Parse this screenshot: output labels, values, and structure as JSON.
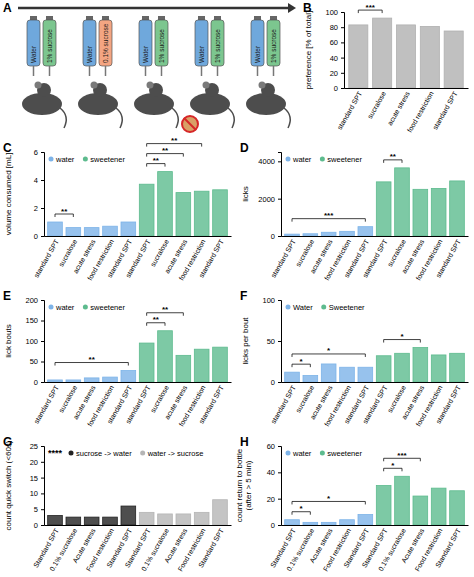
{
  "panel_a": {
    "panel": "A",
    "cages": [
      {
        "bottles": [
          {
            "label": "Water",
            "color": "#6fa8dc"
          },
          {
            "label": "1% sucrose",
            "color": "#7cc68f"
          }
        ]
      },
      {
        "bottles": [
          {
            "label": "Water",
            "color": "#6fa8dc"
          },
          {
            "label": "0.1% sucrose",
            "color": "#f4a582"
          }
        ]
      },
      {
        "bottles": [
          {
            "label": "Water",
            "color": "#6fa8dc"
          },
          {
            "label": "1% sucrose",
            "color": "#7cc68f"
          }
        ]
      },
      {
        "bottles": [
          {
            "label": "Water",
            "color": "#6fa8dc"
          },
          {
            "label": "1% sucrose",
            "color": "#7cc68f"
          }
        ]
      },
      {
        "bottles": [
          {
            "label": "Water",
            "color": "#6fa8dc"
          },
          {
            "label": "1% sucrose",
            "color": "#7cc68f"
          }
        ]
      }
    ]
  },
  "chart_data": [
    {
      "panel": "B",
      "type": "bar",
      "y_label": "preference [% of total]",
      "categories": [
        "standard SPT",
        "sucralose",
        "acute stress",
        "food restriction",
        "standard SPT"
      ],
      "values": [
        83,
        92,
        83,
        81,
        75
      ],
      "color": "#b0b0b0",
      "ylim": [
        0,
        100
      ],
      "yticks": [
        0,
        20,
        40,
        60,
        80,
        100
      ],
      "annotations": [
        {
          "text": "***",
          "between": [
            0,
            1
          ]
        }
      ]
    },
    {
      "panel": "C",
      "type": "bar",
      "y_label": "volume consumed [mL]",
      "legend": "top-left",
      "categories": [
        "standard SPT",
        "sucralose",
        "acute stress",
        "food restriction",
        "standard SPT",
        "standard SPT",
        "sucralose",
        "acute stress",
        "food restriction",
        "standard SPT"
      ],
      "series": [
        {
          "name": "water",
          "color": "#7db3e8",
          "values": [
            1.0,
            0.6,
            0.6,
            0.7,
            1.0,
            null,
            null,
            null,
            null,
            null
          ]
        },
        {
          "name": "sweetener",
          "color": "#5dbb8e",
          "values": [
            null,
            null,
            null,
            null,
            null,
            3.7,
            4.6,
            3.1,
            3.2,
            3.3
          ]
        }
      ],
      "ylim": [
        0,
        6
      ],
      "yticks": [
        0,
        2,
        4,
        6
      ],
      "annotations": [
        {
          "text": "**",
          "between": [
            0,
            1
          ]
        },
        {
          "text": "**",
          "between": [
            5,
            6
          ]
        },
        {
          "text": "**",
          "between": [
            5,
            7
          ]
        },
        {
          "text": "**",
          "between": [
            5,
            8
          ]
        }
      ]
    },
    {
      "panel": "D",
      "type": "bar",
      "y_label": "licks",
      "legend": "top-left",
      "categories": [
        "standard SPT",
        "sucralose",
        "acute stress",
        "food restriction",
        "standard SPT",
        "standard SPT",
        "sucralose",
        "acute stress",
        "food restriction",
        "standard SPT"
      ],
      "series": [
        {
          "name": "water",
          "color": "#7db3e8",
          "values": [
            100,
            120,
            200,
            250,
            500,
            null,
            null,
            null,
            null,
            null
          ]
        },
        {
          "name": "sweetener",
          "color": "#5dbb8e",
          "values": [
            null,
            null,
            null,
            null,
            null,
            2900,
            3650,
            2500,
            2550,
            2950
          ]
        }
      ],
      "ylim": [
        0,
        4500
      ],
      "yticks": [
        0,
        2000,
        4000
      ],
      "annotations": [
        {
          "text": "***",
          "between": [
            0,
            4
          ]
        },
        {
          "text": "**",
          "between": [
            5,
            6
          ]
        }
      ]
    },
    {
      "panel": "E",
      "type": "bar",
      "y_label": "lick bouts",
      "legend": "top-left",
      "categories": [
        "standard SPT",
        "sucralose",
        "acute stress",
        "food restriction",
        "standard SPT",
        "standard SPT",
        "sucralose",
        "acute stress",
        "food restriction",
        "standard SPT"
      ],
      "series": [
        {
          "name": "water",
          "color": "#7db3e8",
          "values": [
            5,
            5,
            10,
            12,
            28,
            null,
            null,
            null,
            null,
            null
          ]
        },
        {
          "name": "sweetener",
          "color": "#5dbb8e",
          "values": [
            null,
            null,
            null,
            null,
            null,
            95,
            125,
            65,
            80,
            85
          ]
        }
      ],
      "ylim": [
        0,
        200
      ],
      "yticks": [
        0,
        50,
        100,
        150,
        200
      ],
      "annotations": [
        {
          "text": "**",
          "between": [
            0,
            4
          ]
        },
        {
          "text": "**",
          "between": [
            5,
            6
          ]
        },
        {
          "text": "**",
          "between": [
            5,
            7
          ]
        }
      ]
    },
    {
      "panel": "F",
      "type": "bar",
      "y_label": "licks per bout",
      "legend": "top-left",
      "categories": [
        "standard SPT",
        "sucralose",
        "acute stress",
        "food restriction",
        "standard SPT",
        "standard SPT",
        "sucralose",
        "acute stress",
        "food restriction",
        "standard SPT"
      ],
      "series": [
        {
          "name": "Water",
          "color": "#7db3e8",
          "values": [
            12,
            8,
            22,
            18,
            18,
            null,
            null,
            null,
            null,
            null
          ]
        },
        {
          "name": "Sweetener",
          "color": "#5dbb8e",
          "values": [
            null,
            null,
            null,
            null,
            null,
            32,
            35,
            42,
            33,
            35
          ]
        }
      ],
      "ylim": [
        0,
        100
      ],
      "yticks": [
        0,
        50,
        100
      ],
      "annotations": [
        {
          "text": "*",
          "between": [
            0,
            1
          ]
        },
        {
          "text": "*",
          "between": [
            0,
            4
          ]
        },
        {
          "text": "*",
          "between": [
            5,
            7
          ]
        }
      ]
    },
    {
      "panel": "G",
      "type": "bar",
      "y_label": "count quick switch (<60s)",
      "legend": "top-left",
      "categories": [
        "Standard SPT",
        "0.1% sucralose",
        "Acute stress",
        "Food restriction",
        "Standard SPT",
        "Standard SPT",
        "0.1% sucralose",
        "Acute stress",
        "Food restriction",
        "Standard SPT"
      ],
      "series": [
        {
          "name": "sucrose -> water",
          "color": "#222222",
          "values": [
            3,
            2.5,
            2.5,
            2.5,
            6,
            null,
            null,
            null,
            null,
            null
          ]
        },
        {
          "name": "water -> sucrose",
          "color": "#b5b5b5",
          "values": [
            null,
            null,
            null,
            null,
            null,
            4,
            3.5,
            3.5,
            4,
            8
          ]
        }
      ],
      "ylim": [
        0,
        25
      ],
      "yticks": [
        0,
        5,
        10,
        15,
        20,
        25
      ],
      "annotations": [
        {
          "text": "****"
        }
      ]
    },
    {
      "panel": "H",
      "type": "bar",
      "y_label": "count return to bottle (after > 5 min)",
      "legend": "top-left",
      "categories": [
        "Standard SPT",
        "0.1% sucralose",
        "Acute stress",
        "Food restriction",
        "Standard SPT",
        "Standard SPT",
        "0.1% sucralose",
        "Acute stress",
        "Food restriction",
        "Standard SPT"
      ],
      "series": [
        {
          "name": "water",
          "color": "#7db3e8",
          "values": [
            4,
            2,
            2,
            4,
            8,
            null,
            null,
            null,
            null,
            null
          ]
        },
        {
          "name": "sweetener",
          "color": "#5dbb8e",
          "values": [
            null,
            null,
            null,
            null,
            null,
            30,
            37,
            22,
            28,
            26
          ]
        }
      ],
      "ylim": [
        0,
        60
      ],
      "yticks": [
        0,
        20,
        40,
        60
      ],
      "annotations": [
        {
          "text": "*",
          "between": [
            0,
            1
          ]
        },
        {
          "text": "*",
          "between": [
            0,
            4
          ]
        },
        {
          "text": "*",
          "between": [
            5,
            6
          ]
        },
        {
          "text": "***",
          "between": [
            5,
            7
          ]
        }
      ]
    }
  ]
}
